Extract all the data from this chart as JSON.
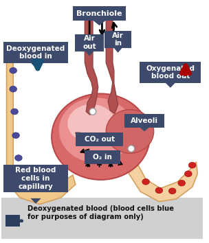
{
  "bg_color": "#ffffff",
  "legend_bg": "#d0d0d0",
  "label_bg": "#3d4a6b",
  "label_text": "#ffffff",
  "capillary_fill": "#f0c88a",
  "capillary_stroke": "#d4a060",
  "alveoli_fill": "#e07070",
  "alveoli_light": "#f0a0a0",
  "alveoli_highlight": "#f8c8c8",
  "bronchiole_fill": "#b05050",
  "bronchiole_stroke": "#904040",
  "labels": {
    "bronchiole": "Bronchiole",
    "air_out": "Air\nout",
    "air_in": "Air\nin",
    "deoxy_in": "Deoxygenated\nblood in",
    "oxy_out": "Oxygenated\nblood out",
    "alveoli": "Alveoli",
    "co2_out": "CO₂ out",
    "o2_in": "O₂ in",
    "rbc": "Red blood\ncells in\ncapillary",
    "legend": "Deoxygenated blood (blood cells blue\nfor purposes of diagram only)"
  }
}
